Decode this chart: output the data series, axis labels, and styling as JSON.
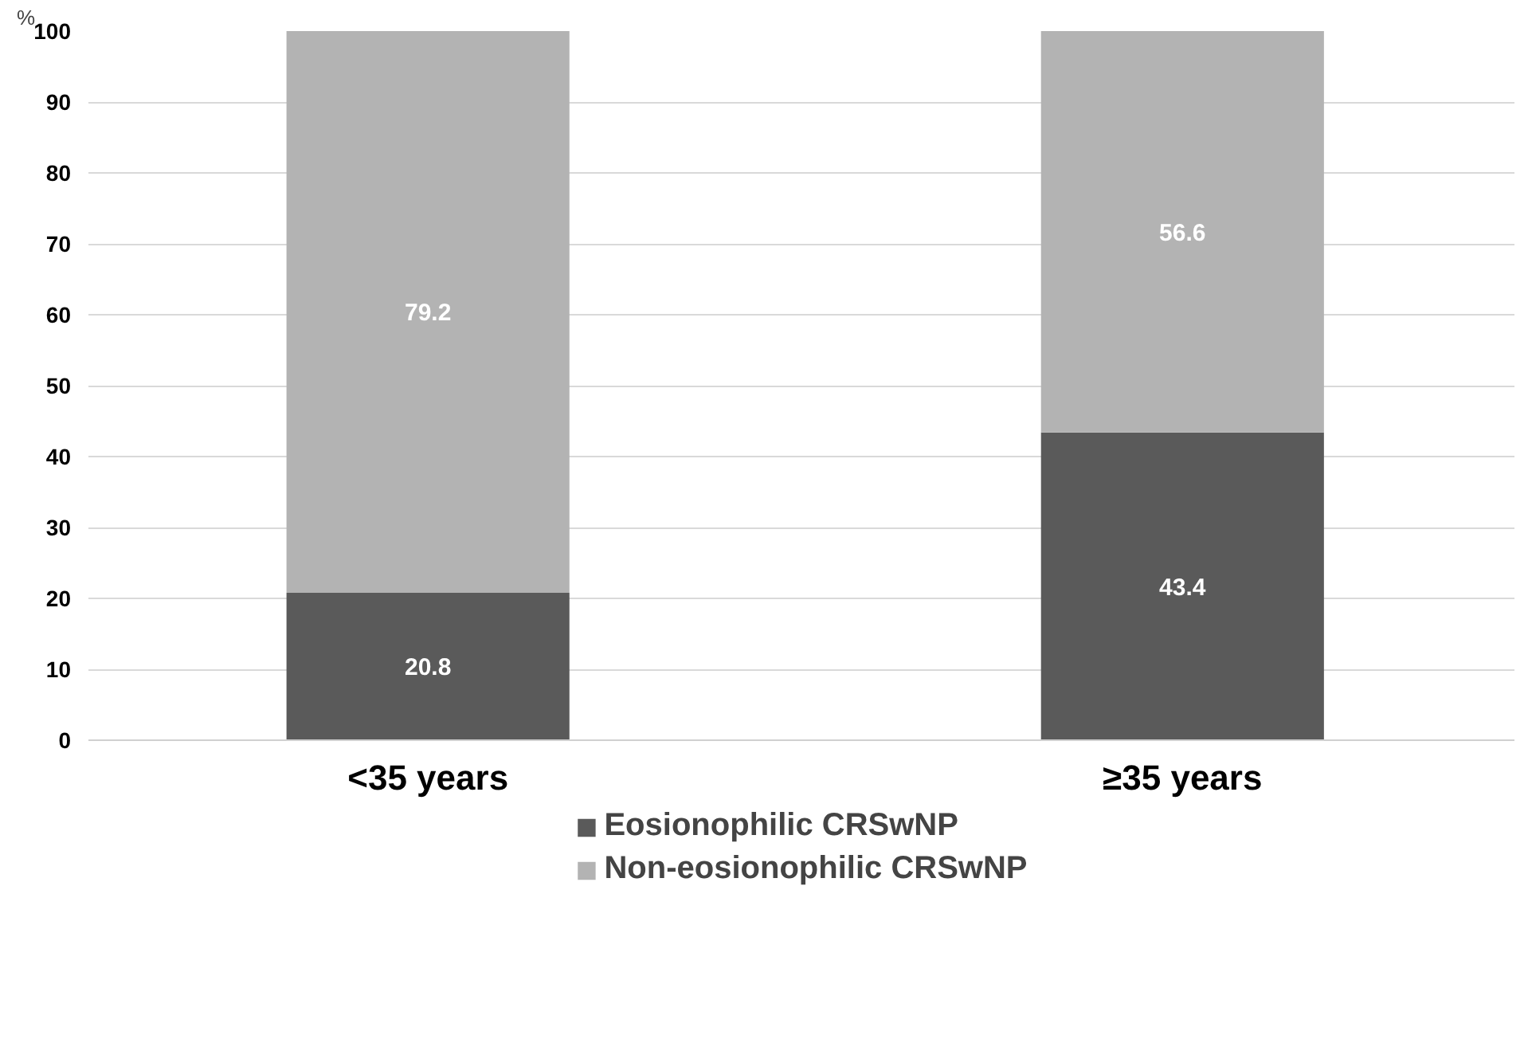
{
  "chart_data": {
    "type": "bar",
    "stacked": true,
    "ylabel": "%",
    "categories": [
      "<35 years",
      "≥35 years"
    ],
    "series": [
      {
        "name": "Eosionophilic CRSwNP",
        "color": "#5a5a5a",
        "values": [
          20.8,
          43.4
        ]
      },
      {
        "name": "Non-eosionophilic CRSwNP",
        "color": "#b3b3b3",
        "values": [
          79.2,
          56.6
        ]
      }
    ],
    "ylim": [
      0,
      100
    ],
    "yticks": [
      0,
      10,
      20,
      30,
      40,
      50,
      60,
      70,
      80,
      90,
      100
    ],
    "grid": "y",
    "legend": "bottom",
    "data_labels": true
  }
}
